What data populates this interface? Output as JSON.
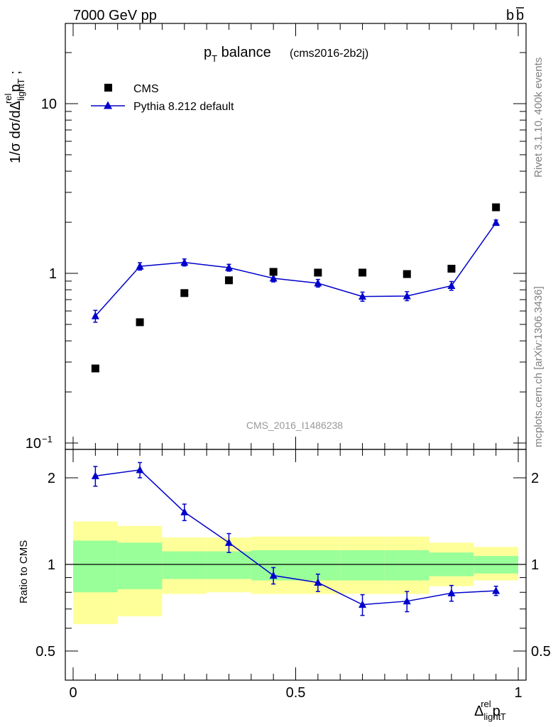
{
  "header": {
    "left": "7000 GeV pp",
    "right_main": "b",
    "right_bar": "b"
  },
  "side_labels": {
    "rivet": "Rivet 3.1.10,  400k events",
    "mcplots": "mcplots.cern.ch [arXiv:1306.3436]"
  },
  "chart_data": {
    "type": "scatter",
    "title": {
      "main": "p",
      "main_sub": "T",
      "main_rest": " balance",
      "tag": "(cms2016-2b2j)"
    },
    "analysis_label": "CMS_2016_I1486238",
    "ylabel": {
      "p1": "1/σ dσ/dΔ",
      "sup": "rel",
      "sub": "light",
      "p2": "p",
      "sub2": "T",
      "p3": " ;"
    },
    "xlabel": {
      "p1": "Δ",
      "sup": "rel",
      "sub": "light",
      "p2": "p",
      "sub2": "T"
    },
    "xlim": [
      0,
      1
    ],
    "ylim": [
      0.1,
      30
    ],
    "yscale": "log",
    "legend": {
      "position": "top-left",
      "entries": [
        "CMS",
        "Pythia 8.212 default"
      ]
    },
    "x": [
      0.05,
      0.15,
      0.25,
      0.35,
      0.45,
      0.55,
      0.65,
      0.75,
      0.85,
      0.95
    ],
    "bin_edges": [
      0,
      0.1,
      0.2,
      0.3,
      0.4,
      0.5,
      0.6,
      0.7,
      0.8,
      0.9,
      1.0
    ],
    "series": [
      {
        "name": "CMS",
        "color": "#000000",
        "marker": "square",
        "values": [
          0.275,
          0.515,
          0.765,
          0.91,
          1.02,
          1.01,
          1.01,
          0.99,
          1.065,
          2.45
        ]
      },
      {
        "name": "Pythia 8.212 default",
        "color": "#0000cc",
        "marker": "triangle",
        "values": [
          0.56,
          1.1,
          1.16,
          1.08,
          0.935,
          0.875,
          0.73,
          0.735,
          0.845,
          1.99
        ],
        "errors": [
          0.045,
          0.055,
          0.055,
          0.05,
          0.045,
          0.045,
          0.045,
          0.045,
          0.05,
          0.07
        ]
      }
    ],
    "ratio": {
      "ylabel": "Ratio to CMS",
      "ylim": [
        0.4,
        2.4
      ],
      "yscale": "log",
      "yticks": [
        "0.5",
        "1",
        "2"
      ],
      "reference": 1,
      "values": [
        2.03,
        2.13,
        1.52,
        1.19,
        0.915,
        0.865,
        0.725,
        0.745,
        0.795,
        0.81
      ],
      "errors": [
        0.16,
        0.13,
        0.1,
        0.09,
        0.06,
        0.06,
        0.06,
        0.06,
        0.05,
        0.03
      ],
      "band_green_low": [
        0.8,
        0.82,
        0.89,
        0.89,
        0.88,
        0.88,
        0.88,
        0.88,
        0.91,
        0.93
      ],
      "band_green_high": [
        1.21,
        1.19,
        1.11,
        1.11,
        1.12,
        1.12,
        1.12,
        1.12,
        1.1,
        1.07
      ],
      "band_yellow_low": [
        0.62,
        0.66,
        0.79,
        0.8,
        0.79,
        0.79,
        0.79,
        0.79,
        0.84,
        0.88
      ],
      "band_yellow_high": [
        1.41,
        1.36,
        1.24,
        1.24,
        1.25,
        1.25,
        1.25,
        1.25,
        1.19,
        1.15
      ],
      "yellow_color": "#ffff99",
      "green_color": "#99ff99"
    },
    "xticks": [
      "0",
      "0.5",
      "1"
    ],
    "yticks_main": [
      "10",
      "1",
      "10"
    ],
    "yticks_main_exp": [
      "",
      "",
      "−1"
    ]
  }
}
